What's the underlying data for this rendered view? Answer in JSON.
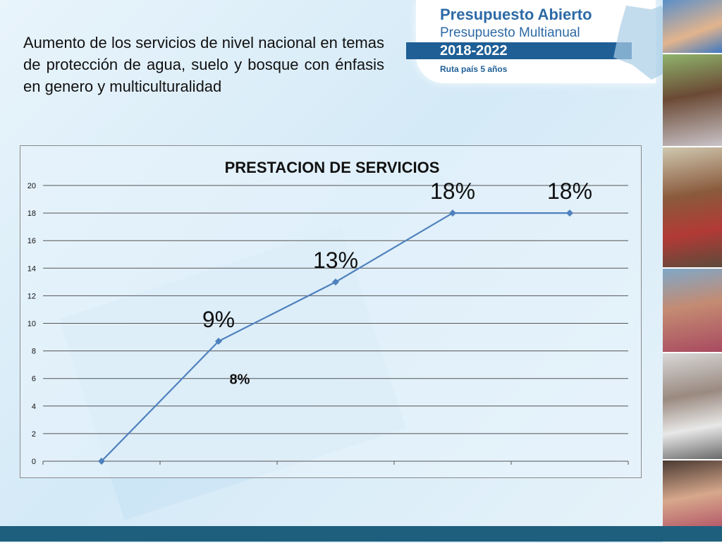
{
  "slide": {
    "text": "Aumento de los servicios de nivel nacional en temas de protección de agua, suelo y bosque con énfasis en genero y multiculturalidad"
  },
  "banner": {
    "title": "Presupuesto Abierto",
    "subtitle": "Presupuesto Multianual",
    "years": "2018-2022",
    "route": "Ruta país 5 años"
  },
  "colors": {
    "line": "#4f81bd",
    "banner_blue": "#2d6aa6",
    "footer": "#1f5f7e"
  },
  "chart_data": {
    "type": "line",
    "title": "PRESTACION DE SERVICIOS",
    "xlabel": "",
    "ylabel": "",
    "ylim": [
      0,
      20
    ],
    "yticks": [
      0,
      2,
      4,
      6,
      8,
      10,
      12,
      14,
      16,
      18,
      20
    ],
    "grid": true,
    "legend": "none",
    "series": [
      {
        "values": [
          0,
          8.7,
          13,
          18,
          18
        ],
        "labels": [
          "",
          "9%",
          "13%",
          "18%",
          "18%"
        ]
      }
    ],
    "annotations": [
      "8%"
    ]
  }
}
